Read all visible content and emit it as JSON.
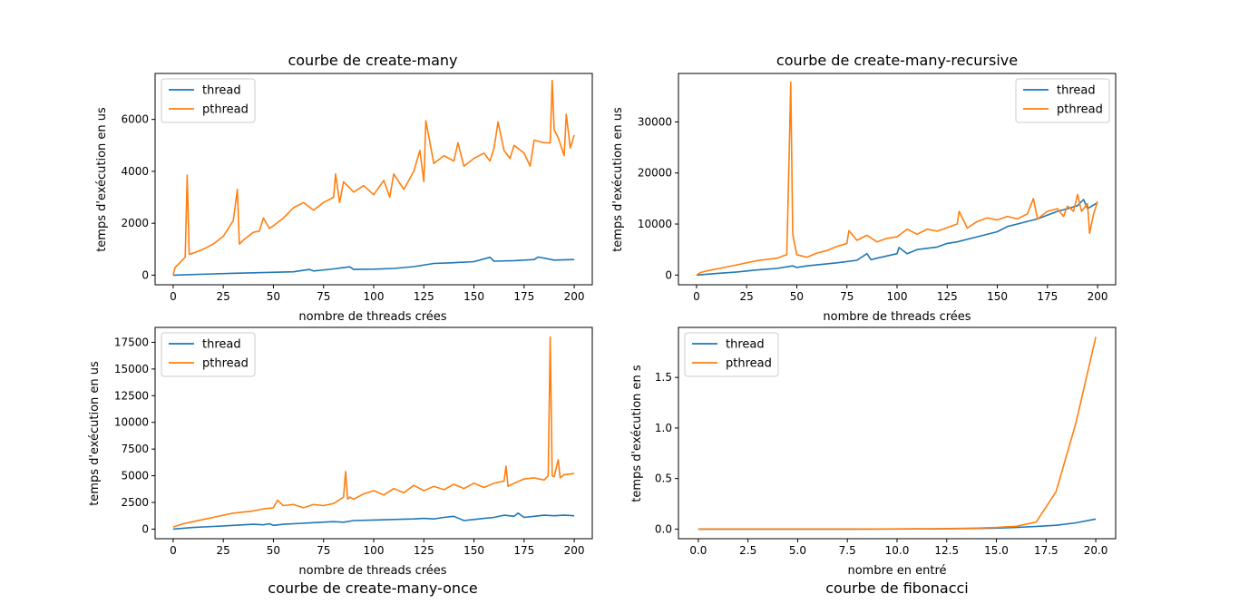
{
  "colors": {
    "thread": "#1f77b4",
    "pthread": "#ff7f0e"
  },
  "chart_data": [
    {
      "type": "line",
      "title": "courbe de create-many",
      "title_position": "top",
      "xlabel": "nombre de threads crées",
      "ylabel": "temps d'exécution en us",
      "xlim": [
        -9,
        209
      ],
      "ylim": [
        -370,
        7770
      ],
      "xticks": [
        0,
        25,
        50,
        75,
        100,
        125,
        150,
        175,
        200
      ],
      "yticks": [
        0,
        2000,
        4000,
        6000
      ],
      "xtick_labels": [
        "0",
        "25",
        "50",
        "75",
        "100",
        "125",
        "150",
        "175",
        "200"
      ],
      "ytick_labels": [
        "0",
        "2000",
        "4000",
        "6000"
      ],
      "legend": "top-left",
      "grid": false,
      "series": [
        {
          "name": "thread",
          "color": "#1f77b4",
          "x": [
            0,
            20,
            40,
            60,
            68,
            70,
            80,
            85,
            88,
            90,
            100,
            110,
            120,
            130,
            140,
            150,
            158,
            160,
            170,
            180,
            182,
            190,
            200
          ],
          "y": [
            0,
            50,
            90,
            130,
            220,
            160,
            240,
            290,
            320,
            220,
            230,
            260,
            330,
            450,
            480,
            520,
            690,
            540,
            560,
            600,
            700,
            580,
            600
          ]
        },
        {
          "name": "pthread",
          "color": "#ff7f0e",
          "x": [
            0,
            1,
            3,
            6,
            7,
            8,
            10,
            15,
            20,
            25,
            30,
            32,
            33,
            35,
            40,
            43,
            45,
            48,
            50,
            55,
            60,
            65,
            70,
            75,
            80,
            81,
            83,
            85,
            90,
            95,
            100,
            105,
            108,
            110,
            115,
            120,
            123,
            125,
            126,
            130,
            135,
            140,
            142,
            145,
            150,
            155,
            158,
            160,
            162,
            165,
            168,
            170,
            175,
            178,
            180,
            185,
            188,
            189,
            190,
            192,
            195,
            196,
            198,
            200
          ],
          "y": [
            0,
            300,
            450,
            700,
            3850,
            800,
            850,
            1000,
            1200,
            1500,
            2100,
            3300,
            1200,
            1350,
            1650,
            1700,
            2200,
            1800,
            1900,
            2200,
            2600,
            2800,
            2500,
            2800,
            3000,
            3900,
            2800,
            3600,
            3200,
            3450,
            3100,
            3650,
            3000,
            3900,
            3300,
            4000,
            4800,
            3600,
            5950,
            4300,
            4600,
            4400,
            5100,
            4200,
            4500,
            4700,
            4400,
            4900,
            5900,
            4800,
            4500,
            5000,
            4700,
            4200,
            5200,
            5100,
            5100,
            7500,
            5600,
            5300,
            4600,
            6200,
            4900,
            5400
          ]
        }
      ]
    },
    {
      "type": "line",
      "title": "courbe de create-many-recursive",
      "title_position": "top",
      "xlabel": "nombre de threads crées",
      "ylabel": "temps d'exécution en us",
      "xlim": [
        -9,
        209
      ],
      "ylim": [
        -1900,
        39500
      ],
      "xticks": [
        0,
        25,
        50,
        75,
        100,
        125,
        150,
        175,
        200
      ],
      "yticks": [
        0,
        10000,
        20000,
        30000
      ],
      "xtick_labels": [
        "0",
        "25",
        "50",
        "75",
        "100",
        "125",
        "150",
        "175",
        "200"
      ],
      "ytick_labels": [
        "0",
        "10000",
        "20000",
        "30000"
      ],
      "legend": "top-right",
      "grid": false,
      "series": [
        {
          "name": "thread",
          "color": "#1f77b4",
          "x": [
            0,
            10,
            20,
            30,
            40,
            48,
            50,
            55,
            60,
            70,
            80,
            85,
            87,
            90,
            100,
            101,
            105,
            110,
            120,
            125,
            130,
            140,
            150,
            155,
            160,
            170,
            180,
            185,
            190,
            193,
            195,
            200
          ],
          "y": [
            0,
            300,
            600,
            1000,
            1300,
            1800,
            1500,
            1800,
            2000,
            2400,
            2900,
            4200,
            3000,
            3300,
            4200,
            5400,
            4200,
            5000,
            5500,
            6200,
            6500,
            7500,
            8500,
            9500,
            10000,
            11000,
            12500,
            13000,
            13600,
            14800,
            13000,
            14200
          ]
        },
        {
          "name": "pthread",
          "color": "#ff7f0e",
          "x": [
            0,
            2,
            5,
            10,
            20,
            30,
            40,
            45,
            46,
            47,
            48,
            50,
            55,
            60,
            65,
            70,
            75,
            76,
            80,
            85,
            90,
            95,
            100,
            105,
            110,
            115,
            120,
            125,
            130,
            131,
            135,
            140,
            145,
            150,
            155,
            160,
            165,
            168,
            170,
            175,
            180,
            183,
            185,
            188,
            190,
            192,
            195,
            196,
            198,
            200
          ],
          "y": [
            0,
            500,
            800,
            1200,
            2000,
            2800,
            3300,
            4000,
            20000,
            37800,
            8000,
            4000,
            3500,
            4300,
            4800,
            5600,
            6200,
            8700,
            6800,
            7800,
            6500,
            7200,
            7500,
            9000,
            8000,
            9000,
            8600,
            9300,
            10000,
            12500,
            9200,
            10500,
            11200,
            10800,
            11500,
            11000,
            12000,
            15000,
            11000,
            12500,
            13000,
            11500,
            13500,
            12500,
            15800,
            12500,
            14000,
            8200,
            12000,
            14400
          ]
        }
      ]
    },
    {
      "type": "line",
      "title": "courbe de create-many-once",
      "title_position": "bottom",
      "xlabel": "nombre de threads crées",
      "ylabel": "temps d'exécution en us",
      "xlim": [
        -9,
        209
      ],
      "ylim": [
        -900,
        18900
      ],
      "xticks": [
        0,
        25,
        50,
        75,
        100,
        125,
        150,
        175,
        200
      ],
      "yticks": [
        0,
        2500,
        5000,
        7500,
        10000,
        12500,
        15000,
        17500
      ],
      "xtick_labels": [
        "0",
        "25",
        "50",
        "75",
        "100",
        "125",
        "150",
        "175",
        "200"
      ],
      "ytick_labels": [
        "0",
        "2500",
        "5000",
        "7500",
        "10000",
        "12500",
        "15000",
        "17500"
      ],
      "legend": "top-left",
      "grid": false,
      "series": [
        {
          "name": "thread",
          "color": "#1f77b4",
          "x": [
            0,
            10,
            20,
            30,
            40,
            45,
            48,
            50,
            55,
            60,
            70,
            80,
            85,
            90,
            100,
            110,
            120,
            125,
            130,
            135,
            140,
            145,
            150,
            155,
            160,
            165,
            170,
            172,
            175,
            180,
            185,
            190,
            195,
            200
          ],
          "y": [
            0,
            150,
            250,
            350,
            450,
            400,
            500,
            350,
            450,
            500,
            600,
            700,
            650,
            800,
            850,
            900,
            950,
            1000,
            950,
            1100,
            1200,
            800,
            900,
            1000,
            1100,
            1300,
            1200,
            1500,
            1100,
            1200,
            1300,
            1250,
            1300,
            1250
          ]
        },
        {
          "name": "pthread",
          "color": "#ff7f0e",
          "x": [
            0,
            5,
            10,
            15,
            20,
            25,
            30,
            35,
            40,
            45,
            50,
            52,
            55,
            60,
            65,
            70,
            75,
            80,
            85,
            86,
            87,
            88,
            90,
            95,
            100,
            105,
            110,
            115,
            120,
            125,
            130,
            135,
            140,
            145,
            150,
            155,
            160,
            165,
            166,
            167,
            170,
            175,
            180,
            185,
            187,
            188,
            189,
            190,
            192,
            193,
            195,
            200
          ],
          "y": [
            200,
            500,
            700,
            900,
            1100,
            1300,
            1500,
            1600,
            1700,
            1900,
            2000,
            2700,
            2200,
            2300,
            2000,
            2300,
            2200,
            2400,
            3000,
            5400,
            2800,
            3000,
            2800,
            3300,
            3600,
            3200,
            3800,
            3400,
            4100,
            3600,
            4000,
            3700,
            4200,
            3800,
            4300,
            3900,
            4300,
            4500,
            5900,
            4000,
            4300,
            4700,
            4800,
            4600,
            5000,
            18000,
            5000,
            4900,
            6500,
            4800,
            5100,
            5200
          ]
        }
      ]
    },
    {
      "type": "line",
      "title": "courbe de fibonacci",
      "title_position": "bottom",
      "xlabel": "nombre en entré",
      "ylabel": "temps d'exécution en s",
      "xlim": [
        -1,
        21
      ],
      "ylim": [
        -0.095,
        1.995
      ],
      "xticks": [
        0,
        2.5,
        5,
        7.5,
        10,
        12.5,
        15,
        17.5,
        20
      ],
      "yticks": [
        0,
        0.5,
        1,
        1.5
      ],
      "xtick_labels": [
        "0.0",
        "2.5",
        "5.0",
        "7.5",
        "10.0",
        "12.5",
        "15.0",
        "17.5",
        "20.0"
      ],
      "ytick_labels": [
        "0.0",
        "0.5",
        "1.0",
        "1.5"
      ],
      "legend": "top-left",
      "grid": false,
      "series": [
        {
          "name": "thread",
          "color": "#1f77b4",
          "x": [
            0,
            2,
            4,
            6,
            8,
            10,
            12,
            13,
            14,
            15,
            16,
            17,
            18,
            19,
            20
          ],
          "y": [
            0,
            0,
            0,
            0,
            0,
            0.001,
            0.002,
            0.004,
            0.006,
            0.01,
            0.016,
            0.026,
            0.038,
            0.062,
            0.1
          ]
        },
        {
          "name": "pthread",
          "color": "#ff7f0e",
          "x": [
            0,
            2,
            4,
            6,
            8,
            10,
            12,
            13,
            14,
            15,
            16,
            17,
            18,
            19,
            20
          ],
          "y": [
            0,
            0,
            0,
            0,
            0,
            0.002,
            0.004,
            0.006,
            0.01,
            0.016,
            0.028,
            0.07,
            0.37,
            1.05,
            1.9
          ]
        }
      ]
    }
  ]
}
